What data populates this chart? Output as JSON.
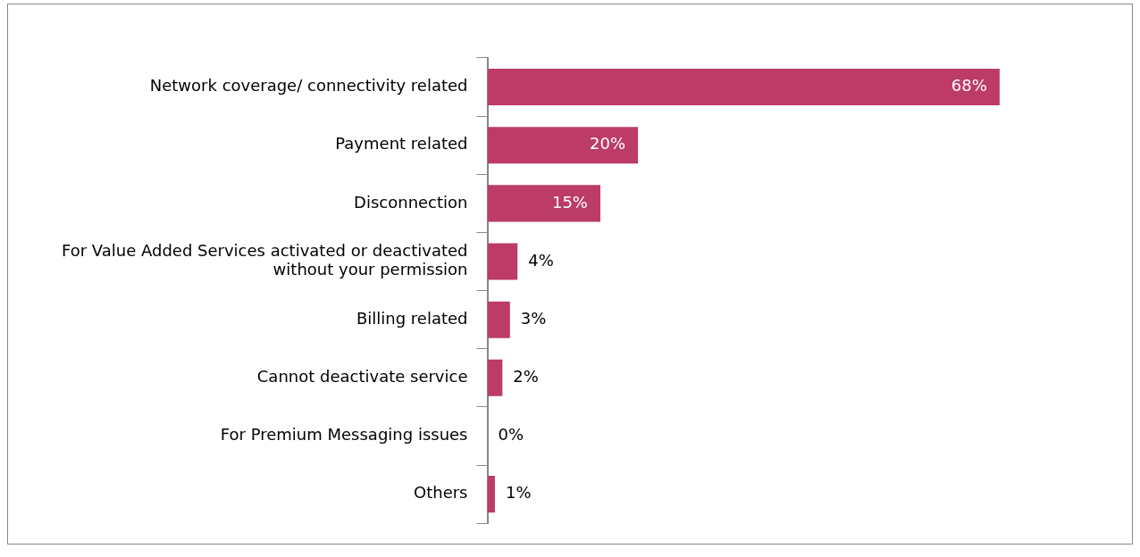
{
  "chart_data": {
    "type": "bar",
    "orientation": "horizontal",
    "categories": [
      "Network coverage/ connectivity related",
      "Payment related",
      "Disconnection",
      "For Value Added Services activated or deactivated without your permission",
      "Billing related",
      "Cannot deactivate service",
      "For Premium Messaging issues",
      "Others"
    ],
    "values": [
      68,
      20,
      15,
      4,
      3,
      2,
      0,
      1
    ],
    "color": "#bc3c67",
    "value_labels": [
      "68%",
      "20%",
      "15%",
      "4%",
      "3%",
      "2%",
      "0%",
      "1%"
    ],
    "grid": false,
    "legend": false,
    "tick_labels": "y"
  }
}
